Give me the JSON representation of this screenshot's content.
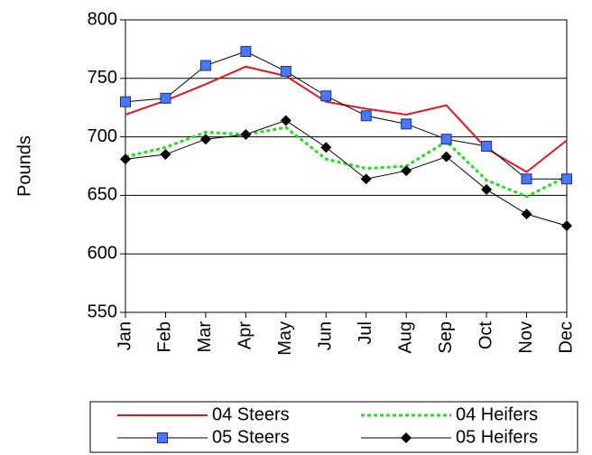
{
  "chart_data": {
    "type": "line",
    "y_label": "Pounds",
    "categories": [
      "Jan",
      "Feb",
      "Mar",
      "Apr",
      "May",
      "Jun",
      "Jul",
      "Aug",
      "Sep",
      "Oct",
      "Nov",
      "Dec"
    ],
    "series": [
      {
        "name": "04 Steers",
        "color": "#e8141c",
        "dash": "solid",
        "marker": null,
        "values": [
          719,
          731,
          745,
          760,
          752,
          730,
          724,
          719,
          727,
          690,
          670,
          697
        ]
      },
      {
        "name": "04 Heifers",
        "color": "#22e01e",
        "dash": "dotted",
        "marker": null,
        "values": [
          683,
          691,
          704,
          702,
          708,
          681,
          673,
          675,
          696,
          663,
          649,
          666
        ]
      },
      {
        "name": "05 Steers",
        "color": "#000000",
        "dash": "solid",
        "marker": "square",
        "marker_color": "#4a78f5",
        "values": [
          730,
          733,
          761,
          773,
          756,
          735,
          718,
          711,
          698,
          692,
          664,
          664
        ]
      },
      {
        "name": "05 Heifers",
        "color": "#000000",
        "dash": "solid",
        "marker": "diamond",
        "marker_color": "#000000",
        "values": [
          681,
          685,
          698,
          702,
          714,
          691,
          664,
          671,
          683,
          655,
          634,
          624
        ]
      }
    ],
    "ylim": [
      550,
      800
    ],
    "yticks": [
      550,
      600,
      650,
      700,
      750,
      800
    ],
    "grid": true,
    "legend": "bottom"
  }
}
